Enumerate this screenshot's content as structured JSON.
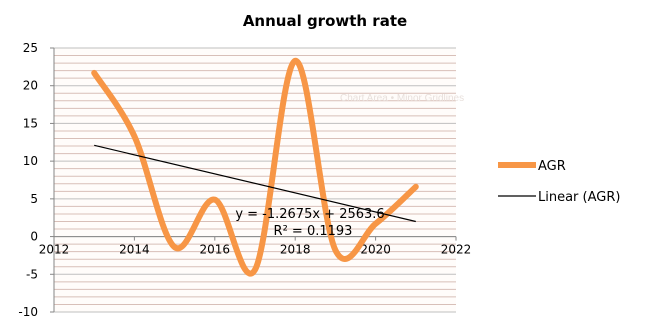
{
  "chart_data": {
    "type": "line",
    "title": "Annual growth rate",
    "xlabel": "",
    "ylabel": "",
    "xlim": [
      2012,
      2022
    ],
    "ylim": [
      -10,
      25
    ],
    "x_ticks": [
      "2012",
      "2014",
      "2016",
      "2018",
      "2020",
      "2022"
    ],
    "y_ticks": [
      "-10",
      "-5",
      "0",
      "5",
      "10",
      "15",
      "20",
      "25"
    ],
    "grid": true,
    "legend_position": "right",
    "series": [
      {
        "name": "AGR",
        "color": "#f79646",
        "smooth": true,
        "x": [
          2013,
          2014,
          2015,
          2016,
          2017,
          2018,
          2019,
          2020,
          2021
        ],
        "y": [
          21.7,
          13.3,
          -1.4,
          4.9,
          -4.4,
          23.3,
          -1.8,
          1.7,
          6.6
        ]
      },
      {
        "name": "Linear (AGR)",
        "color": "#000000",
        "type": "trendline",
        "x": [
          2013,
          2021
        ],
        "y": [
          12.1,
          2.0
        ]
      }
    ],
    "annotations": {
      "equation": "y = -1.2675x + 2563.6",
      "r_squared": "R² = 0.1193"
    },
    "watermark": "Chart Area  •  Minor Gridlines"
  }
}
